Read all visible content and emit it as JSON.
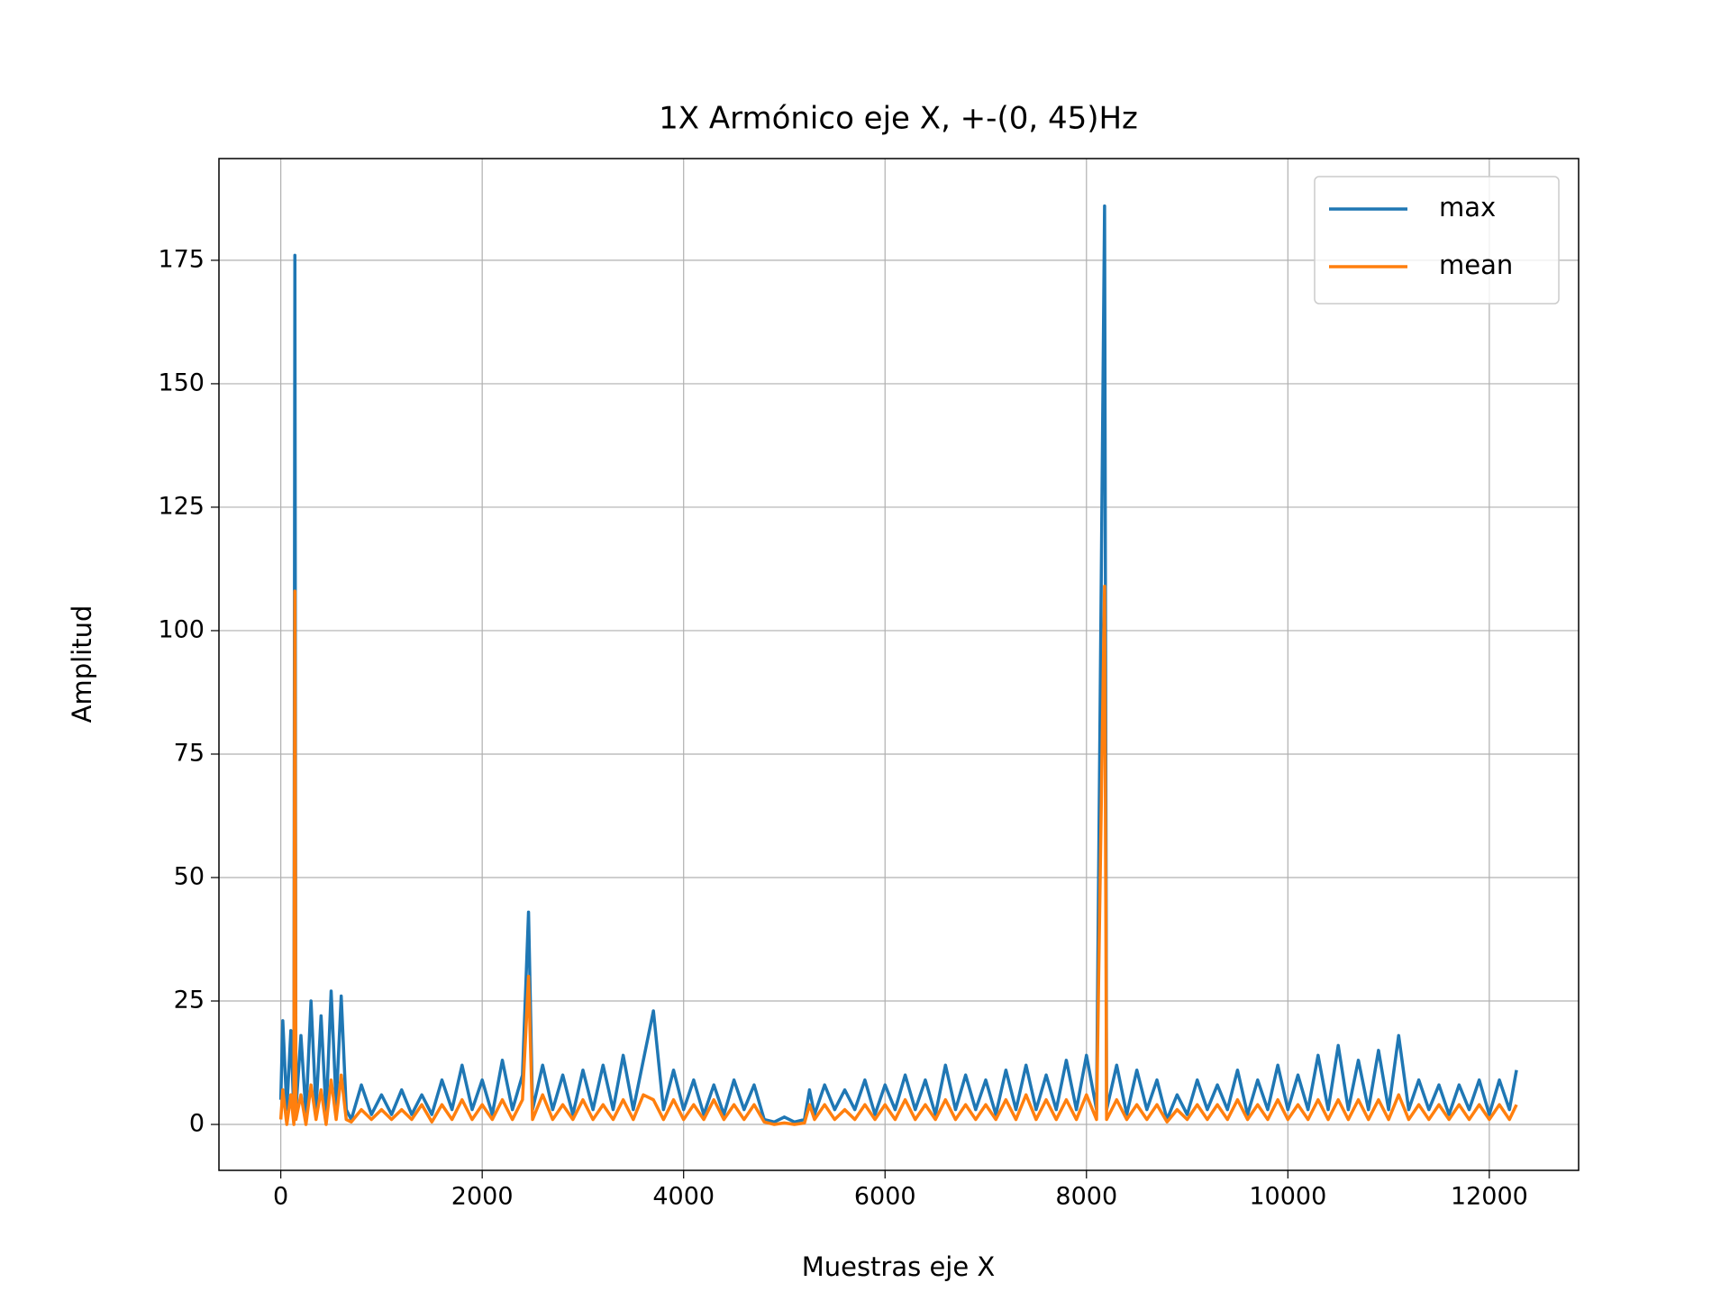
{
  "chart_data": {
    "type": "line",
    "title": "1X Armónico eje X, +-(0, 45)Hz",
    "xlabel": "Muestras eje X",
    "ylabel": "Amplitud",
    "x": [
      0,
      20,
      60,
      100,
      130,
      140,
      150,
      200,
      250,
      300,
      350,
      400,
      450,
      500,
      550,
      600,
      650,
      700,
      800,
      900,
      1000,
      1100,
      1200,
      1300,
      1400,
      1500,
      1600,
      1700,
      1800,
      1900,
      2000,
      2100,
      2200,
      2300,
      2400,
      2460,
      2500,
      2600,
      2700,
      2800,
      2900,
      3000,
      3100,
      3200,
      3300,
      3400,
      3500,
      3600,
      3700,
      3800,
      3900,
      4000,
      4100,
      4200,
      4300,
      4400,
      4500,
      4600,
      4700,
      4800,
      4900,
      5000,
      5100,
      5200,
      5250,
      5300,
      5400,
      5500,
      5600,
      5700,
      5800,
      5900,
      6000,
      6100,
      6200,
      6300,
      6400,
      6500,
      6600,
      6700,
      6800,
      6900,
      7000,
      7100,
      7200,
      7300,
      7400,
      7500,
      7600,
      7700,
      7800,
      7900,
      8000,
      8100,
      8180,
      8200,
      8300,
      8400,
      8500,
      8600,
      8700,
      8800,
      8900,
      9000,
      9100,
      9200,
      9300,
      9400,
      9500,
      9600,
      9700,
      9800,
      9900,
      10000,
      10100,
      10200,
      10300,
      10400,
      10500,
      10600,
      10700,
      10800,
      10900,
      11000,
      11100,
      11200,
      11300,
      11400,
      11500,
      11600,
      11700,
      11800,
      11900,
      12000,
      12100,
      12200,
      12270
    ],
    "series": [
      {
        "name": "max",
        "color": "#1f77b4",
        "values": [
          5,
          21,
          3,
          19,
          2,
          176,
          3,
          18,
          2,
          25,
          3,
          22,
          2,
          27,
          4,
          26,
          3,
          1,
          8,
          2,
          6,
          2,
          7,
          2,
          6,
          2,
          9,
          3,
          12,
          3,
          9,
          2,
          13,
          3,
          10,
          43,
          3,
          12,
          3,
          10,
          2,
          11,
          3,
          12,
          3,
          14,
          3,
          13,
          23,
          3,
          11,
          3,
          9,
          2,
          8,
          2,
          9,
          3,
          8,
          1,
          0.5,
          1.5,
          0.5,
          1,
          7,
          2,
          8,
          3,
          7,
          3,
          9,
          2,
          8,
          3,
          10,
          3,
          9,
          2,
          12,
          3,
          10,
          3,
          9,
          2,
          11,
          3,
          12,
          3,
          10,
          3,
          13,
          3,
          14,
          3,
          186,
          3,
          12,
          2,
          11,
          3,
          9,
          1,
          6,
          2,
          9,
          3,
          8,
          3,
          11,
          2,
          9,
          3,
          12,
          3,
          10,
          3,
          14,
          3,
          16,
          3,
          13,
          3,
          15,
          3,
          18,
          3,
          9,
          3,
          8,
          2,
          8,
          3,
          9,
          2,
          9,
          3,
          11
        ]
      },
      {
        "name": "mean",
        "color": "#ff7f0e",
        "values": [
          1,
          7,
          0,
          6,
          0,
          108,
          1,
          6,
          0,
          8,
          1,
          7,
          0,
          9,
          1,
          10,
          1,
          0.5,
          3,
          1,
          3,
          1,
          3,
          1,
          4,
          0.5,
          4,
          1,
          5,
          1,
          4,
          1,
          5,
          1,
          5,
          30,
          1,
          6,
          1,
          4,
          1,
          5,
          1,
          4,
          1,
          5,
          1,
          6,
          5,
          1,
          5,
          1,
          4,
          1,
          5,
          1,
          4,
          1,
          4,
          0.5,
          0,
          0.3,
          0,
          0.3,
          4,
          1,
          4,
          1,
          3,
          1,
          4,
          1,
          4,
          1,
          5,
          1,
          4,
          1,
          5,
          1,
          4,
          1,
          4,
          1,
          5,
          1,
          6,
          1,
          5,
          1,
          5,
          1,
          6,
          1,
          109,
          1,
          5,
          1,
          4,
          1,
          4,
          0.5,
          3,
          1,
          4,
          1,
          4,
          1,
          5,
          1,
          4,
          1,
          5,
          1,
          4,
          1,
          5,
          1,
          5,
          1,
          5,
          1,
          5,
          1,
          6,
          1,
          4,
          1,
          4,
          1,
          4,
          1,
          4,
          1,
          4,
          1,
          4
        ]
      }
    ],
    "xlim": [
      -614,
      12887
    ],
    "ylim": [
      -9.3,
      195.6
    ],
    "xticks": [
      0,
      2000,
      4000,
      6000,
      8000,
      10000,
      12000
    ],
    "yticks": [
      0,
      25,
      50,
      75,
      100,
      125,
      150,
      175
    ],
    "grid": true,
    "legend": "upper right"
  }
}
